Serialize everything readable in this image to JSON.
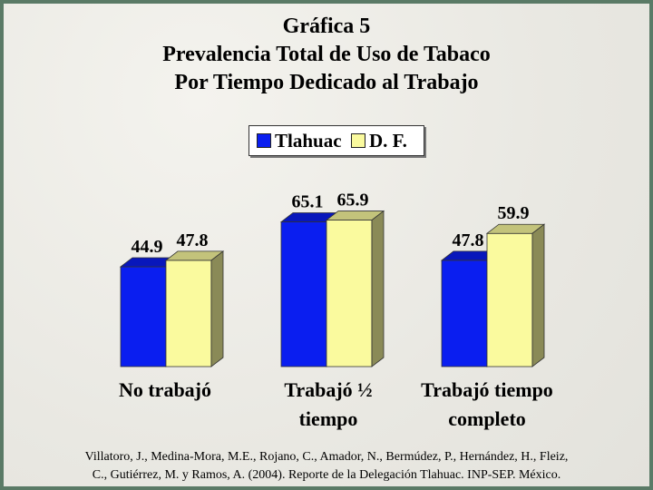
{
  "title_lines": [
    "Gráfica 5",
    "Prevalencia Total de Uso de Tabaco",
    "Por Tiempo Dedicado al Trabajo"
  ],
  "legend": [
    {
      "name": "Tlahuac",
      "color": "#0a1ef0"
    },
    {
      "name": "D. F.",
      "color": "#fafa9e"
    }
  ],
  "chart_data": {
    "type": "bar",
    "categories": [
      "No trabajó",
      "Trabajó ½ tiempo",
      "Trabajó tiempo completo"
    ],
    "category_lines": [
      [
        "No trabajó"
      ],
      [
        "Trabajó ½",
        "tiempo"
      ],
      [
        "Trabajó tiempo",
        "completo"
      ]
    ],
    "series": [
      {
        "name": "Tlahuac",
        "values": [
          44.9,
          65.1,
          47.8
        ],
        "color": "#0a1ef0"
      },
      {
        "name": "D. F.",
        "values": [
          47.8,
          65.9,
          59.9
        ],
        "color": "#fafa9e"
      }
    ],
    "ylim": [
      0,
      70
    ],
    "grid": false,
    "legend_position": "top-center",
    "style": "3d-bar"
  },
  "source_lines": [
    "Villatoro, J., Medina-Mora, M.E., Rojano, C., Amador, N., Bermúdez, P., Hernández, H., Fleiz,",
    "C., Gutiérrez, M. y Ramos, A. (2004). Reporte de la Delegación Tlahuac. INP-SEP. México."
  ]
}
